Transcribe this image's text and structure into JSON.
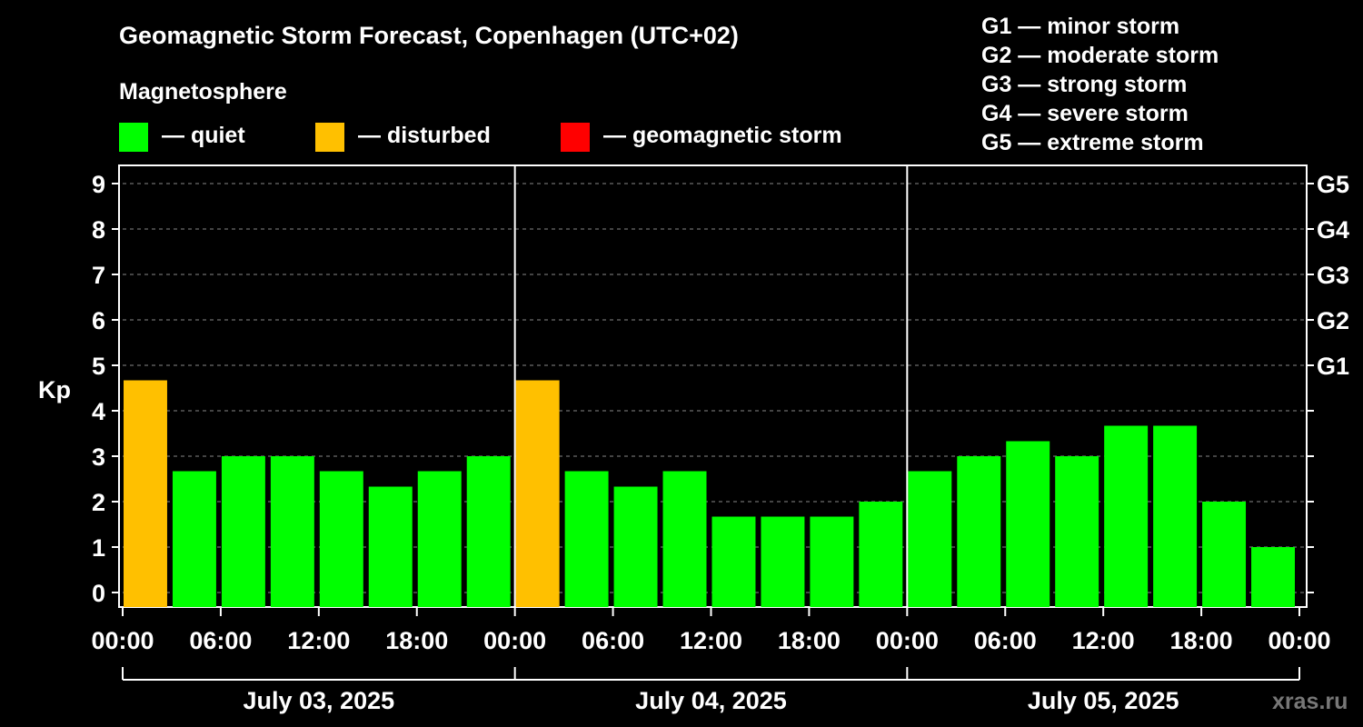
{
  "chart_data": {
    "type": "bar",
    "title": "Geomagnetic Storm Forecast, Copenhagen (UTC+02)",
    "subtitle": "Magnetosphere",
    "ylabel": "Kp",
    "ylim": [
      0,
      9
    ],
    "yticks": [
      "0",
      "1",
      "2",
      "3",
      "4",
      "5",
      "6",
      "7",
      "8",
      "9"
    ],
    "g_levels": [
      {
        "kp": 5,
        "label": "G1"
      },
      {
        "kp": 6,
        "label": "G2"
      },
      {
        "kp": 7,
        "label": "G3"
      },
      {
        "kp": 8,
        "label": "G4"
      },
      {
        "kp": 9,
        "label": "G5"
      }
    ],
    "storm_scale": [
      "G1 — minor storm",
      "G2 — moderate storm",
      "G3 — strong storm",
      "G4 — severe storm",
      "G5 — extreme storm"
    ],
    "status_legend": [
      {
        "label": "— quiet",
        "color": "#00ff00"
      },
      {
        "label": "— disturbed",
        "color": "#ffc000"
      },
      {
        "label": "— geomagnetic storm",
        "color": "#ff0000"
      }
    ],
    "xtick_labels": [
      "00:00",
      "06:00",
      "12:00",
      "18:00",
      "00:00",
      "06:00",
      "12:00",
      "18:00",
      "00:00",
      "06:00",
      "12:00",
      "18:00",
      "00:00"
    ],
    "days": [
      "July 03, 2025",
      "July 04, 2025",
      "July 05, 2025"
    ],
    "interval_hours": 3,
    "x_range_hours": [
      0,
      72
    ],
    "grid": true,
    "bars": [
      {
        "start_h": 0,
        "value": 4.67,
        "status": "disturbed"
      },
      {
        "start_h": 3,
        "value": 2.67,
        "status": "quiet"
      },
      {
        "start_h": 6,
        "value": 3.0,
        "status": "quiet"
      },
      {
        "start_h": 9,
        "value": 3.0,
        "status": "quiet"
      },
      {
        "start_h": 12,
        "value": 2.67,
        "status": "quiet"
      },
      {
        "start_h": 15,
        "value": 2.33,
        "status": "quiet"
      },
      {
        "start_h": 18,
        "value": 2.67,
        "status": "quiet"
      },
      {
        "start_h": 21,
        "value": 3.0,
        "status": "quiet"
      },
      {
        "start_h": 24,
        "value": 4.67,
        "status": "disturbed"
      },
      {
        "start_h": 27,
        "value": 2.67,
        "status": "quiet"
      },
      {
        "start_h": 30,
        "value": 2.33,
        "status": "quiet"
      },
      {
        "start_h": 33,
        "value": 2.67,
        "status": "quiet"
      },
      {
        "start_h": 36,
        "value": 1.67,
        "status": "quiet"
      },
      {
        "start_h": 39,
        "value": 1.67,
        "status": "quiet"
      },
      {
        "start_h": 42,
        "value": 1.67,
        "status": "quiet"
      },
      {
        "start_h": 45,
        "value": 2.0,
        "status": "quiet"
      },
      {
        "start_h": 48,
        "value": 2.67,
        "status": "quiet"
      },
      {
        "start_h": 51,
        "value": 3.0,
        "status": "quiet"
      },
      {
        "start_h": 54,
        "value": 3.33,
        "status": "quiet"
      },
      {
        "start_h": 57,
        "value": 3.0,
        "status": "quiet"
      },
      {
        "start_h": 60,
        "value": 3.67,
        "status": "quiet"
      },
      {
        "start_h": 63,
        "value": 3.67,
        "status": "quiet"
      },
      {
        "start_h": 66,
        "value": 2.0,
        "status": "quiet"
      },
      {
        "start_h": 69,
        "value": 1.0,
        "status": "quiet"
      }
    ],
    "colors": {
      "quiet": "#00ff00",
      "disturbed": "#ffc000",
      "storm": "#ff0000"
    },
    "watermark": "xras.ru"
  }
}
